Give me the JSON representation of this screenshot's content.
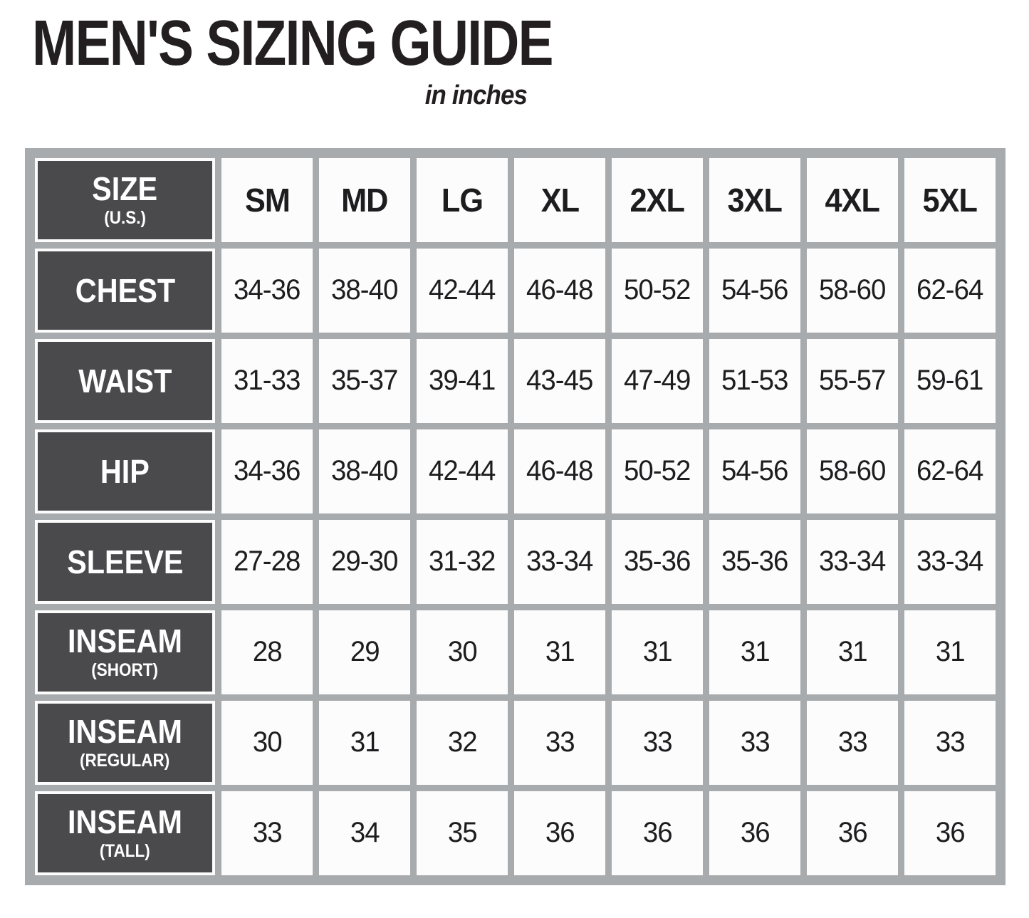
{
  "page": {
    "title": "MEN'S SIZING GUIDE",
    "subtitle": "in inches"
  },
  "table": {
    "corner": {
      "label": "SIZE",
      "sublabel": "(U.S.)"
    },
    "columns": [
      "SM",
      "MD",
      "LG",
      "XL",
      "2XL",
      "3XL",
      "4XL",
      "5XL"
    ],
    "rows": [
      {
        "label": "CHEST",
        "sublabel": "",
        "values": [
          "34-36",
          "38-40",
          "42-44",
          "46-48",
          "50-52",
          "54-56",
          "58-60",
          "62-64"
        ]
      },
      {
        "label": "WAIST",
        "sublabel": "",
        "values": [
          "31-33",
          "35-37",
          "39-41",
          "43-45",
          "47-49",
          "51-53",
          "55-57",
          "59-61"
        ]
      },
      {
        "label": "HIP",
        "sublabel": "",
        "values": [
          "34-36",
          "38-40",
          "42-44",
          "46-48",
          "50-52",
          "54-56",
          "58-60",
          "62-64"
        ]
      },
      {
        "label": "SLEEVE",
        "sublabel": "",
        "values": [
          "27-28",
          "29-30",
          "31-32",
          "33-34",
          "35-36",
          "35-36",
          "33-34",
          "33-34"
        ]
      },
      {
        "label": "INSEAM",
        "sublabel": "(SHORT)",
        "values": [
          "28",
          "29",
          "30",
          "31",
          "31",
          "31",
          "31",
          "31"
        ]
      },
      {
        "label": "INSEAM",
        "sublabel": "(REGULAR)",
        "values": [
          "30",
          "31",
          "32",
          "33",
          "33",
          "33",
          "33",
          "33"
        ]
      },
      {
        "label": "INSEAM",
        "sublabel": "(TALL)",
        "values": [
          "33",
          "34",
          "35",
          "36",
          "36",
          "36",
          "36",
          "36"
        ]
      }
    ]
  },
  "colors": {
    "frame_gray": "#a8abad",
    "header_dark": "#4a4a4c",
    "text_dark": "#1d1d1f",
    "cell_white": "#fcfcfc",
    "page_bg": "#ffffff"
  }
}
